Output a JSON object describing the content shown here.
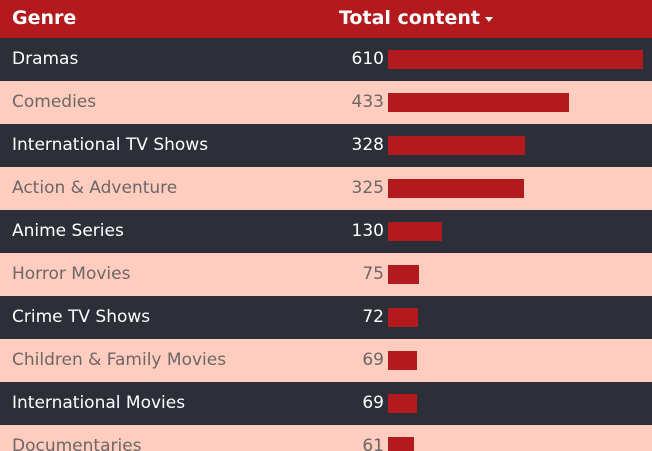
{
  "header": {
    "genre_label": "Genre",
    "total_label": "Total content"
  },
  "colors": {
    "header_bg": "#b31a1e",
    "bar": "#b31a1e",
    "dark_row": "#2c2f38",
    "light_row": "#ffcdbf"
  },
  "rows": [
    {
      "genre": "Dramas",
      "count": "610",
      "value": 610
    },
    {
      "genre": "Comedies",
      "count": "433",
      "value": 433
    },
    {
      "genre": "International TV Shows",
      "count": "328",
      "value": 328
    },
    {
      "genre": "Action & Adventure",
      "count": "325",
      "value": 325
    },
    {
      "genre": "Anime Series",
      "count": "130",
      "value": 130
    },
    {
      "genre": "Horror Movies",
      "count": "75",
      "value": 75
    },
    {
      "genre": "Crime TV Shows",
      "count": "72",
      "value": 72
    },
    {
      "genre": "Children & Family Movies",
      "count": "69",
      "value": 69
    },
    {
      "genre": "International Movies",
      "count": "69",
      "value": 69
    },
    {
      "genre": "Documentaries",
      "count": "61",
      "value": 61
    }
  ]
}
